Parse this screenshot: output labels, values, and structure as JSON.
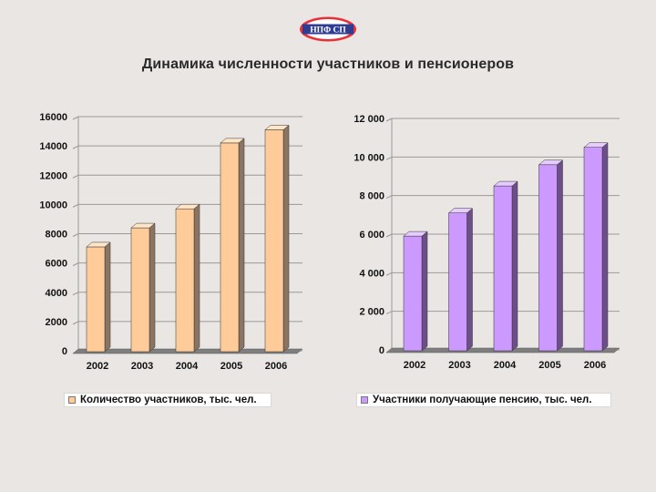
{
  "logo": {
    "text": "НПФ СП",
    "colors": {
      "outer": "#e8323a",
      "ring": "#ffffff",
      "band": "#2f3c93",
      "text": "#ffffff"
    }
  },
  "title": "Динамика численности участников и пенсионеров",
  "chart_data": [
    {
      "type": "bar",
      "categories": [
        "2002",
        "2003",
        "2004",
        "2005",
        "2006"
      ],
      "series": [
        {
          "name": "Количество участников, тыс. чел.",
          "values": [
            7100,
            8400,
            9700,
            14200,
            15100
          ]
        }
      ],
      "ylim": [
        0,
        16000
      ],
      "yticks": [
        0,
        2000,
        4000,
        6000,
        8000,
        10000,
        12000,
        14000,
        16000
      ],
      "ytick_labels": [
        "0",
        "2000",
        "4000",
        "6000",
        "8000",
        "10000",
        "12000",
        "14000",
        "16000"
      ],
      "grid": true,
      "legend_position": "bottom",
      "colors": {
        "front": "#ffcc99",
        "side": "#8c7462",
        "top": "#ffe6c9",
        "grid": "#9a9a9a",
        "floor": "#7e7e7e"
      }
    },
    {
      "type": "bar",
      "categories": [
        "2002",
        "2003",
        "2004",
        "2005",
        "2006"
      ],
      "series": [
        {
          "name": "Участники получающие пенсию, тыс. чел.",
          "values": [
            5900,
            7100,
            8500,
            9600,
            10500
          ]
        }
      ],
      "ylim": [
        0,
        12000
      ],
      "yticks": [
        0,
        2000,
        4000,
        6000,
        8000,
        10000,
        12000
      ],
      "ytick_labels": [
        "0",
        "2 000",
        "4 000",
        "6 000",
        "8 000",
        "10 000",
        "12 000"
      ],
      "grid": true,
      "legend_position": "bottom",
      "colors": {
        "front": "#cc99ff",
        "side": "#6e4e8a",
        "top": "#e6ccff",
        "grid": "#9a9a9a",
        "floor": "#7e7e7e"
      }
    }
  ]
}
